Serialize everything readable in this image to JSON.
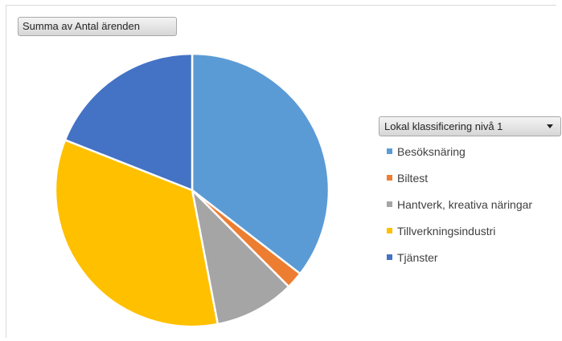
{
  "value_field_button": "Summa av Antal ärenden",
  "axis_field_button": "Lokal klassificering nivå 1",
  "chart_data": {
    "type": "pie",
    "series": [
      {
        "name": "Summa av Antal ärenden",
        "categories": [
          "Besöksnäring",
          "Biltest",
          "Hantverk, kreativa näringar",
          "Tillverkningsindustri",
          "Tjänster"
        ],
        "values": [
          35.5,
          2,
          9.5,
          34,
          19
        ]
      }
    ],
    "colors": [
      "#5B9BD5",
      "#ED7D31",
      "#A5A5A5",
      "#FFC000",
      "#4472C4"
    ],
    "legend": {
      "position": "right",
      "labels": [
        "Besöksnäring",
        "Biltest",
        "Hantverk, kreativa näringar",
        "Tillverkningsindustri",
        "Tjänster"
      ]
    },
    "start_angle": "12 o'clock",
    "direction": "clockwise"
  }
}
